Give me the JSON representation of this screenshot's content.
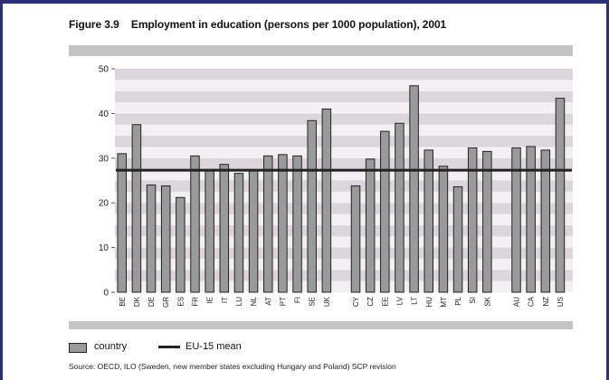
{
  "figure": {
    "number": "Figure 3.9",
    "title": "Employment in education (persons per 1000 population), 2001"
  },
  "legend": {
    "bar_label": "country",
    "line_label": "EU-15 mean"
  },
  "source": "Source: OECD, ILO (Sweden, new member states excluding Hungary and Poland) SCP revision",
  "colors": {
    "bar": "#9a9a9a",
    "line": "#222222",
    "band_dark": "#dcd6dc",
    "band_light": "#f3eff3",
    "header_bar": "#c4c4c4",
    "frame": "#2a2f78"
  },
  "chart_data": {
    "type": "bar",
    "title": "Employment in education (persons per 1000 population), 2001",
    "ylim": [
      0,
      50
    ],
    "yticks": [
      0,
      10,
      20,
      30,
      40,
      50
    ],
    "grid": true,
    "legend_position": "bottom-left",
    "groups": [
      {
        "categories": [
          "BE",
          "DK",
          "DE",
          "GR",
          "ES",
          "FR",
          "IE",
          "IT",
          "LU",
          "NL",
          "AT",
          "PT",
          "FI",
          "SE",
          "UK"
        ],
        "values": [
          31,
          37.5,
          24,
          23.8,
          21.2,
          30.5,
          27.2,
          28.6,
          26.6,
          27.2,
          30.5,
          30.8,
          30.5,
          38.4,
          41
        ]
      },
      {
        "categories": [
          "CY",
          "CZ",
          "EE",
          "LV",
          "LT",
          "HU",
          "MT",
          "PL",
          "SI",
          "SK"
        ],
        "values": [
          23.8,
          29.8,
          36,
          37.8,
          46.2,
          31.8,
          28.2,
          23.6,
          32.3,
          31.5
        ]
      },
      {
        "categories": [
          "AU",
          "CA",
          "NZ",
          "US"
        ],
        "values": [
          32.3,
          32.6,
          31.8,
          43.4
        ]
      }
    ],
    "series": [
      {
        "name": "country",
        "kind": "bar"
      },
      {
        "name": "EU-15 mean",
        "kind": "line",
        "value": 27.3
      }
    ]
  }
}
